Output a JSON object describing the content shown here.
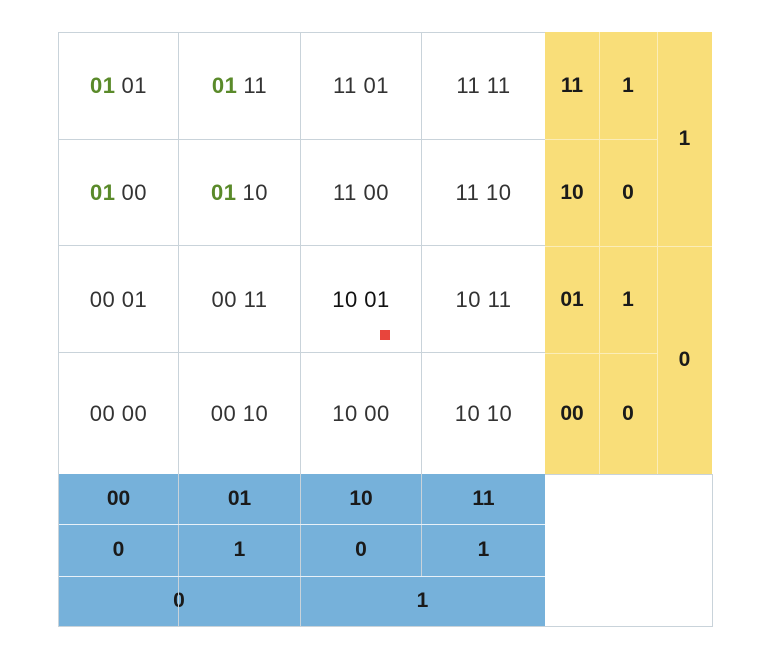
{
  "grid": {
    "rows": [
      [
        {
          "prefix": "01",
          "suffix": "01"
        },
        {
          "prefix": "01",
          "suffix": "11"
        },
        {
          "prefix": "",
          "suffix": "11 01"
        },
        {
          "prefix": "",
          "suffix": "11 11"
        }
      ],
      [
        {
          "prefix": "01",
          "suffix": "00"
        },
        {
          "prefix": "01",
          "suffix": "10"
        },
        {
          "prefix": "",
          "suffix": "11 00"
        },
        {
          "prefix": "",
          "suffix": "11 10"
        }
      ],
      [
        {
          "prefix": "",
          "suffix": "00 01"
        },
        {
          "prefix": "",
          "suffix": "00 11"
        },
        {
          "prefix": "",
          "suffix": "10 01"
        },
        {
          "prefix": "",
          "suffix": "10 11"
        }
      ],
      [
        {
          "prefix": "",
          "suffix": "00 00"
        },
        {
          "prefix": "",
          "suffix": "00 10"
        },
        {
          "prefix": "",
          "suffix": "10 00"
        },
        {
          "prefix": "",
          "suffix": "10 10"
        }
      ]
    ]
  },
  "right_labels": {
    "pairs": [
      "11",
      "10",
      "01",
      "00"
    ],
    "bits": [
      "1",
      "0",
      "1",
      "0"
    ],
    "groups": [
      "1",
      "0"
    ]
  },
  "bottom_labels": {
    "pairs": [
      "00",
      "01",
      "10",
      "11"
    ],
    "bits": [
      "0",
      "1",
      "0",
      "1"
    ],
    "groups": [
      "0",
      "1"
    ]
  },
  "colors": {
    "yellow": "#f9de79",
    "blue": "#76b1da",
    "prefix_green": "#5a8a2a",
    "marker_red": "#e8453c"
  }
}
